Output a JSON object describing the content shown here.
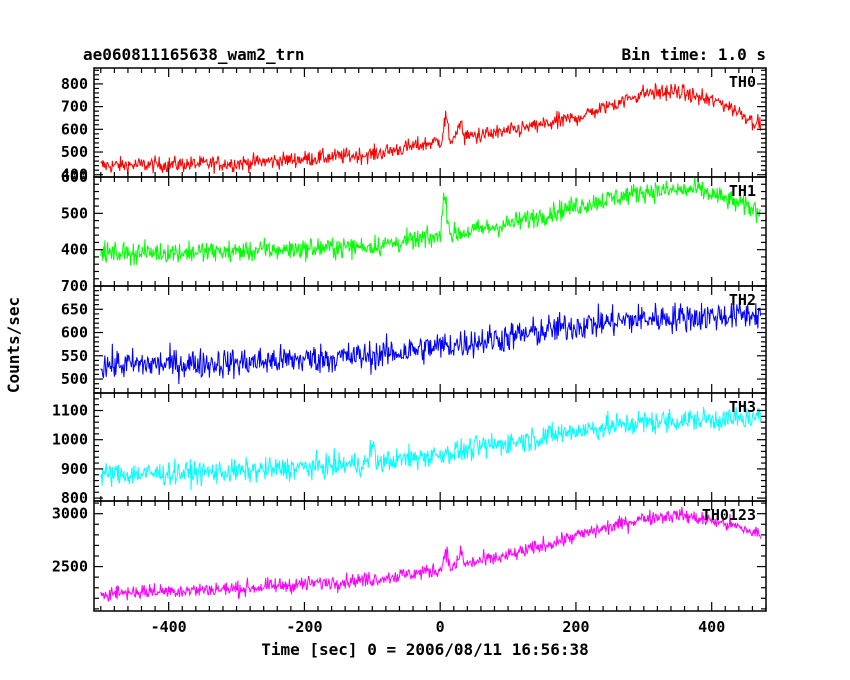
{
  "header": {
    "title": "ae060811165638_wam2_trn",
    "bin_time": "Bin time: 1.0 s"
  },
  "axes": {
    "ylabel": "Counts/sec",
    "xlabel": "Time [sec] 0 = 2006/08/11 16:56:38"
  },
  "chart_data": {
    "type": "line",
    "title": "ae060811165638_wam2_trn",
    "xlabel": "Time [sec] 0 = 2006/08/11 16:56:38",
    "ylabel": "Counts/sec",
    "xlim": [
      -510,
      480
    ],
    "x_range": [
      -500,
      472
    ],
    "x_ticks": [
      -400,
      -200,
      0,
      200,
      400
    ],
    "grid": false,
    "panels": [
      {
        "name": "TH0",
        "color": "#ff0000",
        "ylim": [
          390,
          870
        ],
        "y_ticks": [
          400,
          500,
          600,
          700,
          800
        ],
        "anchors": [
          [
            -500,
            440
          ],
          [
            -300,
            450
          ],
          [
            -100,
            490
          ],
          [
            20,
            560
          ],
          [
            100,
            590
          ],
          [
            200,
            650
          ],
          [
            300,
            760
          ],
          [
            350,
            765
          ],
          [
            420,
            710
          ],
          [
            472,
            620
          ]
        ],
        "noise": 35,
        "features": [
          {
            "x": 8,
            "dy": 130
          },
          {
            "x": 30,
            "dy": 100
          }
        ]
      },
      {
        "name": "TH1",
        "color": "#00ff00",
        "ylim": [
          300,
          600
        ],
        "y_ticks": [
          400,
          500,
          600
        ],
        "anchors": [
          [
            -500,
            390
          ],
          [
            -300,
            395
          ],
          [
            -100,
            410
          ],
          [
            0,
            435
          ],
          [
            100,
            470
          ],
          [
            200,
            520
          ],
          [
            300,
            560
          ],
          [
            380,
            565
          ],
          [
            472,
            505
          ]
        ],
        "noise": 28,
        "features": [
          {
            "x": 5,
            "dy": 120
          },
          {
            "x": 10,
            "dy": 80
          }
        ]
      },
      {
        "name": "TH2",
        "color": "#0000ff",
        "ylim": [
          470,
          700
        ],
        "y_ticks": [
          500,
          550,
          600,
          650,
          700
        ],
        "anchors": [
          [
            -500,
            530
          ],
          [
            -300,
            535
          ],
          [
            -100,
            550
          ],
          [
            0,
            570
          ],
          [
            100,
            590
          ],
          [
            200,
            615
          ],
          [
            300,
            630
          ],
          [
            400,
            635
          ],
          [
            472,
            640
          ]
        ],
        "noise": 32,
        "features": []
      },
      {
        "name": "TH3",
        "color": "#00ffff",
        "ylim": [
          790,
          1160
        ],
        "y_ticks": [
          800,
          900,
          1000,
          1100
        ],
        "anchors": [
          [
            -500,
            880
          ],
          [
            -300,
            890
          ],
          [
            -100,
            920
          ],
          [
            0,
            950
          ],
          [
            100,
            990
          ],
          [
            200,
            1030
          ],
          [
            300,
            1060
          ],
          [
            400,
            1070
          ],
          [
            472,
            1070
          ]
        ],
        "noise": 40,
        "features": [
          {
            "x": -100,
            "dy": 90
          }
        ]
      },
      {
        "name": "TH0123",
        "color": "#ff00ff",
        "ylim": [
          2080,
          3120
        ],
        "y_ticks": [
          2500,
          3000
        ],
        "anchors": [
          [
            -500,
            2250
          ],
          [
            -300,
            2290
          ],
          [
            -100,
            2380
          ],
          [
            0,
            2470
          ],
          [
            50,
            2540
          ],
          [
            100,
            2600
          ],
          [
            200,
            2790
          ],
          [
            300,
            2960
          ],
          [
            350,
            2990
          ],
          [
            420,
            2910
          ],
          [
            472,
            2800
          ]
        ],
        "noise": 70,
        "features": [
          {
            "x": 8,
            "dy": 260
          },
          {
            "x": 30,
            "dy": 180
          }
        ]
      }
    ]
  }
}
